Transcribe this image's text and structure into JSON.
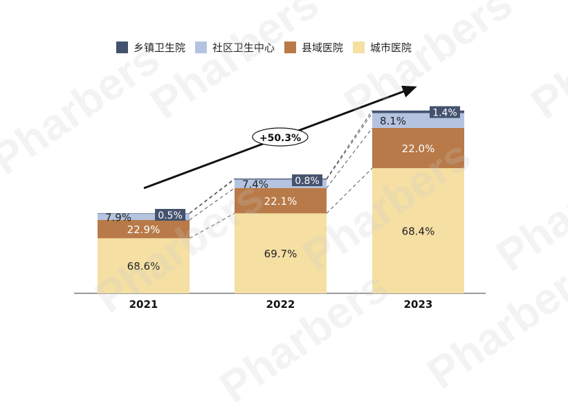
{
  "chart_data": {
    "type": "bar",
    "stacked": true,
    "categories": [
      "2021",
      "2022",
      "2023"
    ],
    "series": [
      {
        "name": "城市医院",
        "color": "#f5dfa3",
        "values": [
          68.6,
          69.7,
          68.4
        ],
        "labels": [
          "68.6%",
          "69.7%",
          "68.4%"
        ]
      },
      {
        "name": "县域医院",
        "color": "#b87a48",
        "values": [
          22.9,
          22.1,
          22.0
        ],
        "labels": [
          "22.9%",
          "22.1%",
          "22.0%"
        ]
      },
      {
        "name": "社区卫生中心",
        "color": "#b4c3e0",
        "values": [
          7.9,
          7.4,
          8.1
        ],
        "labels": [
          "7.9%",
          "7.4%",
          "8.1%"
        ]
      },
      {
        "name": "乡镇卫生院",
        "color": "#44526e",
        "values": [
          0.5,
          0.8,
          1.4
        ],
        "labels": [
          "0.5%",
          "0.8%",
          "1.4%"
        ]
      }
    ],
    "relative_totals": [
      1.0,
      1.43,
      2.28
    ],
    "annotation": "+50.3%",
    "legend_position": "top",
    "grid": false
  },
  "watermark": "Pharbers"
}
